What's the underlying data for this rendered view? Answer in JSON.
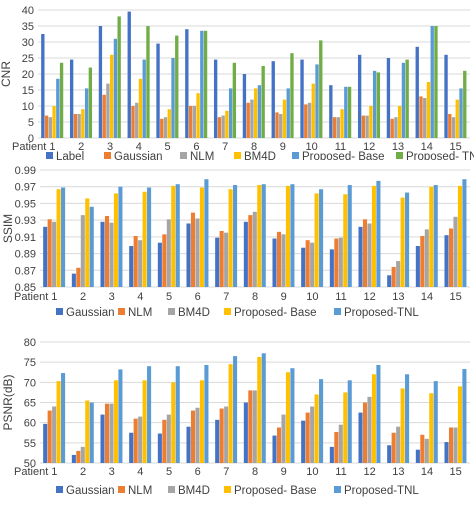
{
  "chart_data": [
    {
      "type": "bar",
      "title": "",
      "xlabel": "Patient",
      "ylabel": "CNR",
      "ylim": [
        0,
        40
      ],
      "yticks": [
        0,
        5,
        10,
        15,
        20,
        25,
        30,
        35,
        40
      ],
      "categories": [
        "1",
        "2",
        "3",
        "4",
        "5",
        "6",
        "7",
        "8",
        "9",
        "10",
        "11",
        "12",
        "13",
        "14",
        "15"
      ],
      "grid": "horizontal",
      "legend_position": "bottom",
      "series": [
        {
          "name": "Label",
          "color": "#4472C4",
          "values": [
            32.5,
            24.5,
            35,
            39.5,
            29.5,
            34,
            24.5,
            20,
            24,
            24.5,
            16.5,
            26,
            25,
            28.5,
            26
          ]
        },
        {
          "name": "Gaussian",
          "color": "#ED7D31",
          "values": [
            7,
            7.5,
            13.5,
            10,
            6,
            10,
            6.5,
            11,
            8,
            10.5,
            6.5,
            7,
            6,
            13,
            7.5
          ]
        },
        {
          "name": "NLM",
          "color": "#A5A5A5",
          "values": [
            6.5,
            7.5,
            17,
            11,
            6.5,
            10,
            7,
            12,
            7.5,
            11,
            6.5,
            7,
            6.5,
            12.5,
            6.5
          ]
        },
        {
          "name": "BM4D",
          "color": "#FFC000",
          "values": [
            10,
            9,
            26,
            18.5,
            9,
            14,
            8.5,
            15.5,
            12,
            17,
            9,
            10,
            10,
            17.5,
            12
          ]
        },
        {
          "name": "Proposed- Base",
          "color": "#5B9BD5",
          "values": [
            18.5,
            15.5,
            31,
            24.5,
            25,
            33.5,
            15.5,
            16.5,
            15.5,
            23,
            16,
            21,
            23.5,
            35,
            15.5
          ]
        },
        {
          "name": "Proposed- TNL",
          "color": "#70AD47",
          "values": [
            23.5,
            22,
            38,
            35,
            32,
            33.5,
            23.5,
            22.5,
            26.5,
            30.5,
            16,
            20.5,
            24.5,
            35,
            21
          ]
        }
      ]
    },
    {
      "type": "bar",
      "title": "",
      "xlabel": "Patient",
      "ylabel": "SSIM",
      "ylim": [
        0.85,
        0.99
      ],
      "yticks": [
        "0.85",
        "0.87",
        "0.89",
        "0.91",
        "0.93",
        "0.95",
        "0.97",
        "0.99"
      ],
      "categories": [
        "1",
        "2",
        "3",
        "4",
        "5",
        "6",
        "7",
        "8",
        "9",
        "10",
        "11",
        "12",
        "13",
        "14",
        "15"
      ],
      "grid": "horizontal",
      "legend_position": "bottom",
      "series": [
        {
          "name": "Gaussian",
          "color": "#4472C4",
          "values": [
            0.922,
            0.866,
            0.928,
            0.899,
            0.903,
            0.926,
            0.909,
            0.928,
            0.908,
            0.897,
            0.895,
            0.922,
            0.864,
            0.899,
            0.912
          ]
        },
        {
          "name": "NLM",
          "color": "#ED7D31",
          "values": [
            0.931,
            0.873,
            0.935,
            0.911,
            0.913,
            0.939,
            0.917,
            0.936,
            0.916,
            0.906,
            0.908,
            0.931,
            0.874,
            0.911,
            0.92
          ]
        },
        {
          "name": "BM4D",
          "color": "#A5A5A5",
          "values": [
            0.928,
            0.936,
            0.927,
            0.906,
            0.931,
            0.932,
            0.915,
            0.94,
            0.913,
            0.903,
            0.909,
            0.926,
            0.881,
            0.919,
            0.934
          ]
        },
        {
          "name": "Proposed- Base",
          "color": "#FFC000",
          "values": [
            0.967,
            0.956,
            0.962,
            0.964,
            0.971,
            0.969,
            0.967,
            0.972,
            0.971,
            0.962,
            0.961,
            0.971,
            0.957,
            0.97,
            0.971
          ]
        },
        {
          "name": "Proposed-TNL",
          "color": "#5B9BD5",
          "values": [
            0.969,
            0.946,
            0.97,
            0.969,
            0.973,
            0.979,
            0.972,
            0.973,
            0.973,
            0.967,
            0.972,
            0.977,
            0.963,
            0.972,
            0.979
          ]
        }
      ]
    },
    {
      "type": "bar",
      "title": "",
      "xlabel": "Patient",
      "ylabel": "PSNR(dB)",
      "ylim": [
        50,
        80
      ],
      "yticks": [
        50,
        55,
        60,
        65,
        70,
        75,
        80
      ],
      "categories": [
        "1",
        "2",
        "3",
        "4",
        "5",
        "6",
        "7",
        "8",
        "9",
        "10",
        "11",
        "12",
        "13",
        "14",
        "15"
      ],
      "grid": "horizontal",
      "legend_position": "bottom",
      "series": [
        {
          "name": "Gaussian",
          "color": "#4472C4",
          "values": [
            59.7,
            52,
            62,
            57.5,
            57.3,
            59,
            60.7,
            65,
            56.8,
            60.5,
            54,
            62.5,
            54.4,
            53.3,
            55.2
          ]
        },
        {
          "name": "NLM",
          "color": "#ED7D31",
          "values": [
            63,
            53,
            64.7,
            61,
            60.7,
            63,
            63.5,
            68,
            58.8,
            62.5,
            57.7,
            65,
            57.5,
            57,
            58.8
          ]
        },
        {
          "name": "BM4D",
          "color": "#A5A5A5",
          "values": [
            64,
            54,
            64.7,
            61.5,
            62,
            63.7,
            64,
            68,
            62,
            64,
            59.5,
            66.4,
            59,
            56,
            58.8
          ]
        },
        {
          "name": "Proposed- Base",
          "color": "#FFC000",
          "values": [
            70.3,
            65.5,
            70.5,
            70.5,
            70,
            70.5,
            74.5,
            76.3,
            72.5,
            67,
            67.5,
            72,
            68.5,
            67.3,
            69
          ]
        },
        {
          "name": "Proposed-TNL",
          "color": "#5B9BD5",
          "values": [
            72.3,
            65,
            73.2,
            74,
            74,
            74.3,
            76.5,
            77.2,
            73.5,
            70.8,
            70.5,
            74.3,
            72,
            70.3,
            73.3
          ]
        }
      ]
    }
  ]
}
